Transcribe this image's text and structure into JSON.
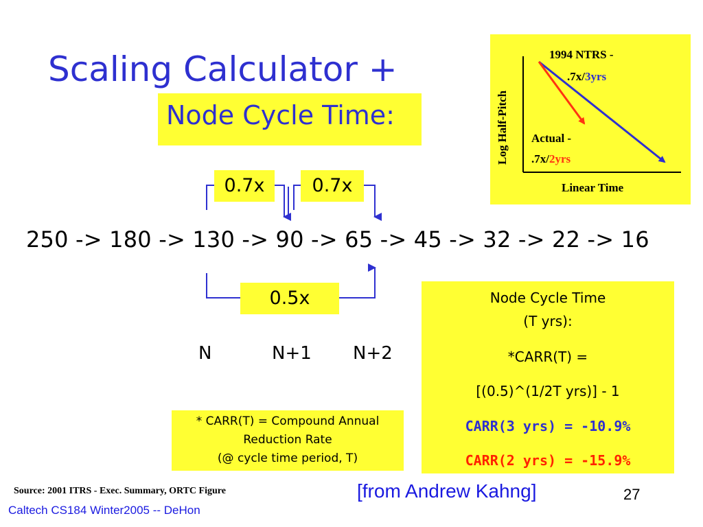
{
  "slide": {
    "title": "Scaling Calculator +",
    "subtitle": "Node Cycle Time:"
  },
  "chart": {
    "ylabel": "Log Half-Pitch",
    "xlabel": "Linear Time",
    "series_a_line1": "1994 NTRS -",
    "series_a_rate": ".7x/",
    "series_a_period": "3yrs",
    "series_b_line1": "Actual -",
    "series_b_rate": ".7x/",
    "series_b_period": "2yrs",
    "colors": {
      "ntrs_line": "#2e30d0",
      "actual_line": "#ff3311",
      "axis": "#000000"
    }
  },
  "diagram": {
    "sequence": "250 -> 180 -> 130 -> 90 -> 65 -> 45 -> 32 -> 22 -> 16",
    "factor_1": "0.7x",
    "factor_2": "0.7x",
    "factor_3": "0.5x",
    "node_n": "N",
    "node_n1": "N+1",
    "node_n2": "N+2",
    "colors": {
      "bracket": "#2e30d0"
    }
  },
  "info": {
    "line1": "Node Cycle Time",
    "line2": "(T yrs):",
    "line3": "*CARR(T) =",
    "line4": "[(0.5)^(1/2T yrs)] - 1",
    "carr3": "CARR(3 yrs) = -10.9%",
    "carr2": "CARR(2 yrs) = -15.9%",
    "colors": {
      "carr3": "#2e30d0",
      "carr2": "#ff2200"
    }
  },
  "note": {
    "line1": "* CARR(T) = Compound Annual",
    "line2": "Reduction Rate",
    "line3": "(@ cycle time period, T)"
  },
  "footer": {
    "source": "Source:  2001 ITRS - Exec. Summary, ORTC Figure",
    "attribution": "[from Andrew Kahng]",
    "page_number": "27",
    "course": "Caltech CS184 Winter2005 -- DeHon"
  },
  "colors": {
    "title": "#2e30d0",
    "highlight": "#ffff33",
    "footer_text": "#1a1ae0"
  }
}
